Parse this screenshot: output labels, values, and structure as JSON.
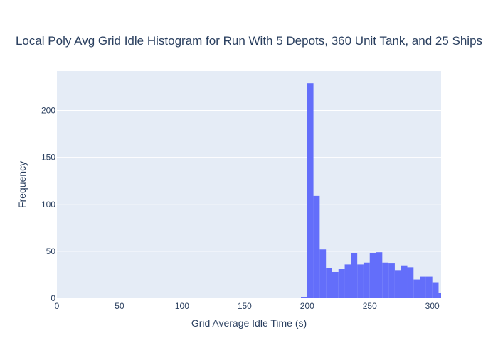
{
  "chart_data": {
    "type": "histogram",
    "title": "Local Poly Avg Grid Idle Histogram for Run With 5 Depots, 360 Unit Tank, and 25 Ships",
    "xlabel": "Grid Average Idle Time (s)",
    "ylabel": "Frequency",
    "xlim": [
      0,
      307
    ],
    "ylim": [
      0,
      242
    ],
    "x_ticks": [
      0,
      50,
      100,
      150,
      200,
      250,
      300
    ],
    "y_ticks": [
      0,
      50,
      100,
      150,
      200
    ],
    "bin_width": 5,
    "bins": [
      {
        "start": 195,
        "count": 1
      },
      {
        "start": 200,
        "count": 229
      },
      {
        "start": 205,
        "count": 109
      },
      {
        "start": 210,
        "count": 52
      },
      {
        "start": 215,
        "count": 32
      },
      {
        "start": 220,
        "count": 28
      },
      {
        "start": 225,
        "count": 31
      },
      {
        "start": 230,
        "count": 36
      },
      {
        "start": 235,
        "count": 48
      },
      {
        "start": 240,
        "count": 36
      },
      {
        "start": 245,
        "count": 38
      },
      {
        "start": 250,
        "count": 48
      },
      {
        "start": 255,
        "count": 49
      },
      {
        "start": 260,
        "count": 38
      },
      {
        "start": 265,
        "count": 37
      },
      {
        "start": 270,
        "count": 30
      },
      {
        "start": 275,
        "count": 35
      },
      {
        "start": 280,
        "count": 33
      },
      {
        "start": 285,
        "count": 20
      },
      {
        "start": 290,
        "count": 23
      },
      {
        "start": 295,
        "count": 23
      },
      {
        "start": 300,
        "count": 17
      },
      {
        "start": 305,
        "count": 6
      }
    ],
    "colors": {
      "bar": "#636efa",
      "plot_bg": "#e5ecf6",
      "grid": "#ffffff",
      "text": "#2a3f5f"
    },
    "grid": true
  }
}
